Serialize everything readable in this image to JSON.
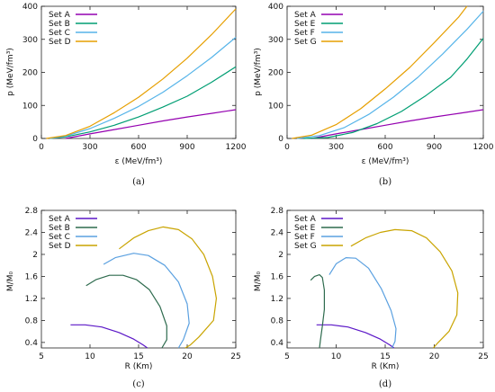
{
  "panels": [
    {
      "caption": "(a)",
      "chart_data": {
        "type": "line",
        "xlabel": "ε (MeV/fm³)",
        "ylabel": "p (MeV/fm³)",
        "xlim": [
          0,
          1200
        ],
        "ylim": [
          0,
          400
        ],
        "xticks": [
          0,
          300,
          600,
          900,
          1200
        ],
        "yticks": [
          0,
          100,
          200,
          300,
          400
        ],
        "grid": false,
        "legend_position": "top-left",
        "series": [
          {
            "name": "Set A",
            "color": "#9400b0",
            "points": [
              [
                150,
                0
              ],
              [
                300,
                14
              ],
              [
                450,
                27
              ],
              [
                600,
                40
              ],
              [
                750,
                53
              ],
              [
                900,
                65
              ],
              [
                1050,
                76
              ],
              [
                1200,
                87
              ]
            ]
          },
          {
            "name": "Set B",
            "color": "#009e73",
            "points": [
              [
                50,
                0
              ],
              [
                150,
                5
              ],
              [
                300,
                20
              ],
              [
                450,
                40
              ],
              [
                600,
                65
              ],
              [
                750,
                95
              ],
              [
                900,
                128
              ],
              [
                1050,
                170
              ],
              [
                1200,
                217
              ]
            ]
          },
          {
            "name": "Set C",
            "color": "#56b4e9",
            "points": [
              [
                50,
                0
              ],
              [
                150,
                7
              ],
              [
                300,
                30
              ],
              [
                450,
                61
              ],
              [
                600,
                97
              ],
              [
                750,
                140
              ],
              [
                900,
                190
              ],
              [
                1050,
                245
              ],
              [
                1200,
                306
              ]
            ]
          },
          {
            "name": "Set D",
            "color": "#e69f00",
            "points": [
              [
                30,
                0
              ],
              [
                150,
                9
              ],
              [
                300,
                37
              ],
              [
                450,
                78
              ],
              [
                600,
                125
              ],
              [
                750,
                180
              ],
              [
                900,
                243
              ],
              [
                1050,
                314
              ],
              [
                1200,
                392
              ]
            ]
          }
        ]
      }
    },
    {
      "caption": "(b)",
      "chart_data": {
        "type": "line",
        "xlabel": "ε (MeV/fm³)",
        "ylabel": "p (MeV/fm³)",
        "xlim": [
          0,
          1200
        ],
        "ylim": [
          0,
          400
        ],
        "xticks": [
          0,
          300,
          600,
          900,
          1200
        ],
        "yticks": [
          0,
          100,
          200,
          300,
          400
        ],
        "grid": false,
        "legend_position": "top-left",
        "series": [
          {
            "name": "Set A",
            "color": "#9400b0",
            "points": [
              [
                150,
                0
              ],
              [
                300,
                14
              ],
              [
                450,
                27
              ],
              [
                600,
                40
              ],
              [
                750,
                53
              ],
              [
                900,
                65
              ],
              [
                1050,
                76
              ],
              [
                1200,
                87
              ]
            ]
          },
          {
            "name": "Set E",
            "color": "#009e73",
            "points": [
              [
                100,
                0
              ],
              [
                250,
                3
              ],
              [
                400,
                18
              ],
              [
                550,
                45
              ],
              [
                700,
                82
              ],
              [
                850,
                130
              ],
              [
                1000,
                185
              ],
              [
                1100,
                240
              ],
              [
                1200,
                303
              ]
            ]
          },
          {
            "name": "Set F",
            "color": "#56b4e9",
            "points": [
              [
                60,
                0
              ],
              [
                200,
                9
              ],
              [
                350,
                33
              ],
              [
                500,
                73
              ],
              [
                650,
                125
              ],
              [
                800,
                185
              ],
              [
                950,
                255
              ],
              [
                1100,
                330
              ],
              [
                1200,
                385
              ]
            ]
          },
          {
            "name": "Set G",
            "color": "#e69f00",
            "points": [
              [
                30,
                0
              ],
              [
                150,
                10
              ],
              [
                300,
                42
              ],
              [
                450,
                90
              ],
              [
                600,
                150
              ],
              [
                750,
                215
              ],
              [
                900,
                290
              ],
              [
                1050,
                368
              ],
              [
                1100,
                400
              ]
            ]
          }
        ]
      }
    },
    {
      "caption": "(c)",
      "chart_data": {
        "type": "line",
        "xlabel": "R (Km)",
        "ylabel": "M/M₀",
        "xlim": [
          5,
          25
        ],
        "ylim": [
          0.3,
          2.8
        ],
        "xticks": [
          5,
          10,
          15,
          20,
          25
        ],
        "yticks": [
          0.4,
          0.8,
          1.2,
          1.6,
          2.0,
          2.4,
          2.8
        ],
        "grid": false,
        "legend_position": "top-left",
        "series": [
          {
            "name": "Set A",
            "color": "#5b17c7",
            "points": [
              [
                8.0,
                0.72
              ],
              [
                9.5,
                0.72
              ],
              [
                11.2,
                0.68
              ],
              [
                13.0,
                0.58
              ],
              [
                14.5,
                0.46
              ],
              [
                15.5,
                0.35
              ],
              [
                15.9,
                0.3
              ]
            ]
          },
          {
            "name": "Set B",
            "color": "#2e6b4e",
            "points": [
              [
                9.6,
                1.43
              ],
              [
                10.6,
                1.54
              ],
              [
                12.0,
                1.62
              ],
              [
                13.4,
                1.62
              ],
              [
                14.8,
                1.54
              ],
              [
                16.1,
                1.36
              ],
              [
                17.2,
                1.05
              ],
              [
                17.9,
                0.7
              ],
              [
                17.9,
                0.45
              ],
              [
                17.4,
                0.3
              ]
            ]
          },
          {
            "name": "Set C",
            "color": "#5aa0e0",
            "points": [
              [
                11.4,
                1.82
              ],
              [
                12.6,
                1.94
              ],
              [
                14.5,
                2.02
              ],
              [
                16.0,
                1.98
              ],
              [
                17.7,
                1.8
              ],
              [
                19.1,
                1.5
              ],
              [
                20.0,
                1.1
              ],
              [
                20.2,
                0.75
              ],
              [
                19.6,
                0.45
              ],
              [
                19.1,
                0.3
              ]
            ]
          },
          {
            "name": "Set D",
            "color": "#c9a400",
            "points": [
              [
                13.0,
                2.1
              ],
              [
                14.5,
                2.3
              ],
              [
                16.0,
                2.43
              ],
              [
                17.5,
                2.5
              ],
              [
                19.1,
                2.45
              ],
              [
                20.5,
                2.28
              ],
              [
                21.7,
                2.0
              ],
              [
                22.6,
                1.6
              ],
              [
                23.0,
                1.2
              ],
              [
                22.7,
                0.8
              ],
              [
                21.2,
                0.5
              ],
              [
                20.3,
                0.35
              ],
              [
                19.8,
                0.3
              ]
            ]
          }
        ]
      }
    },
    {
      "caption": "(d)",
      "chart_data": {
        "type": "line",
        "xlabel": "R (Km)",
        "ylabel": "M/M₀",
        "xlim": [
          5,
          25
        ],
        "ylim": [
          0.3,
          2.8
        ],
        "xticks": [
          5,
          10,
          15,
          20,
          25
        ],
        "yticks": [
          0.4,
          0.8,
          1.2,
          1.6,
          2.0,
          2.4,
          2.8
        ],
        "grid": false,
        "legend_position": "top-left",
        "series": [
          {
            "name": "Set A",
            "color": "#5b17c7",
            "points": [
              [
                8.0,
                0.72
              ],
              [
                9.5,
                0.72
              ],
              [
                11.2,
                0.68
              ],
              [
                13.0,
                0.58
              ],
              [
                14.5,
                0.46
              ],
              [
                15.5,
                0.35
              ],
              [
                15.9,
                0.3
              ]
            ]
          },
          {
            "name": "Set E",
            "color": "#2e6b4e",
            "points": [
              [
                7.4,
                1.53
              ],
              [
                7.8,
                1.6
              ],
              [
                8.3,
                1.63
              ],
              [
                8.6,
                1.58
              ],
              [
                8.8,
                1.35
              ],
              [
                8.8,
                1.0
              ],
              [
                8.6,
                0.7
              ],
              [
                8.4,
                0.45
              ],
              [
                8.3,
                0.3
              ]
            ]
          },
          {
            "name": "Set F",
            "color": "#5aa0e0",
            "points": [
              [
                9.3,
                1.63
              ],
              [
                10.0,
                1.83
              ],
              [
                11.0,
                1.94
              ],
              [
                12.0,
                1.93
              ],
              [
                13.3,
                1.75
              ],
              [
                14.6,
                1.38
              ],
              [
                15.6,
                0.98
              ],
              [
                16.1,
                0.65
              ],
              [
                16.0,
                0.42
              ],
              [
                15.7,
                0.3
              ]
            ]
          },
          {
            "name": "Set G",
            "color": "#c9a400",
            "points": [
              [
                11.5,
                2.15
              ],
              [
                13.0,
                2.3
              ],
              [
                14.5,
                2.4
              ],
              [
                16.0,
                2.45
              ],
              [
                17.7,
                2.43
              ],
              [
                19.2,
                2.3
              ],
              [
                20.6,
                2.05
              ],
              [
                21.8,
                1.7
              ],
              [
                22.4,
                1.3
              ],
              [
                22.3,
                0.9
              ],
              [
                21.5,
                0.6
              ],
              [
                20.4,
                0.4
              ],
              [
                19.9,
                0.3
              ]
            ]
          }
        ]
      }
    }
  ]
}
